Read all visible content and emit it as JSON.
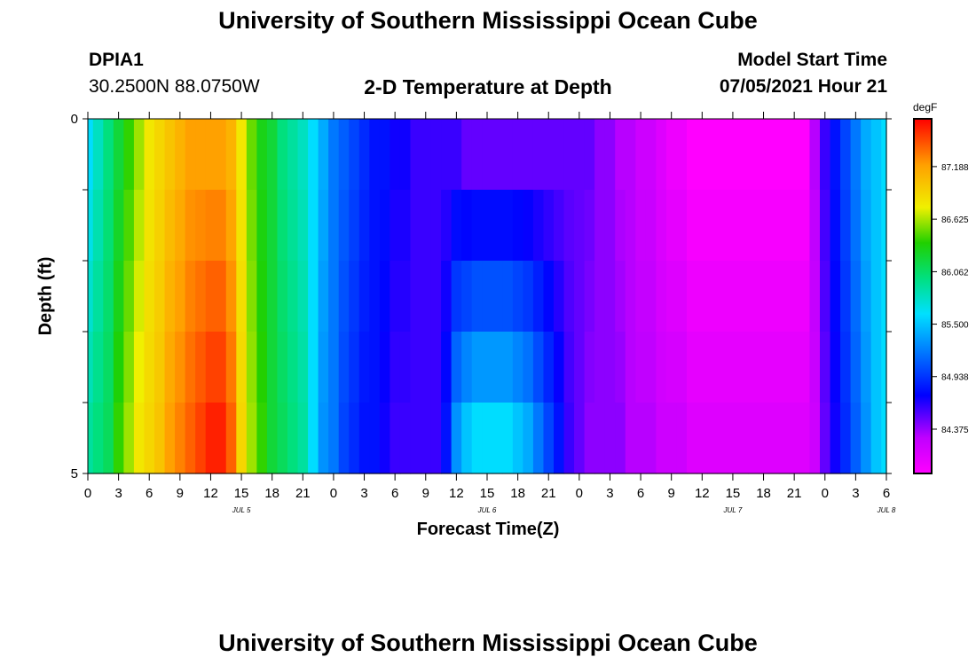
{
  "header": {
    "title": "University of Southern Mississippi Ocean Cube",
    "station": "DPIA1",
    "coords": "30.2500N  88.0750W",
    "plot_title": "2-D Temperature at Depth",
    "model_start_label": "Model Start Time",
    "model_start_value": "07/05/2021 Hour 21"
  },
  "footer": {
    "title": "University of Southern Mississippi Ocean Cube"
  },
  "chart_data": {
    "type": "heatmap",
    "title": "2-D Temperature at Depth",
    "xlabel": "Forecast Time(Z)",
    "ylabel": "Depth (ft)",
    "colorbar_label": "degF",
    "x_tick_labels": [
      "0",
      "3",
      "6",
      "9",
      "12",
      "15",
      "18",
      "21",
      "0",
      "3",
      "6",
      "9",
      "12",
      "15",
      "18",
      "21",
      "0",
      "3",
      "6",
      "9",
      "12",
      "15",
      "18",
      "21",
      "0",
      "3",
      "6"
    ],
    "date_labels": [
      "JUL 5",
      "JUL 6",
      "JUL 7",
      "JUL 8"
    ],
    "date_label_hours": [
      15,
      39,
      63,
      78
    ],
    "y_tick_labels": [
      "0",
      "5"
    ],
    "ylim": [
      0,
      5
    ],
    "xlim_hours": [
      0,
      78
    ],
    "colorbar_ticks": [
      "87.188",
      "86.625",
      "86.062",
      "85.500",
      "84.938",
      "84.375"
    ],
    "colorbar_range_degF": [
      83.9,
      87.7
    ],
    "time_hours": [
      0,
      1,
      2,
      3,
      4,
      5,
      6,
      7,
      8,
      9,
      10,
      11,
      12,
      13,
      14,
      15,
      16,
      17,
      18,
      19,
      20,
      21,
      22,
      23,
      24,
      25,
      26,
      27,
      28,
      29,
      30,
      31,
      32,
      33,
      34,
      35,
      36,
      37,
      38,
      39,
      40,
      41,
      42,
      43,
      44,
      45,
      46,
      47,
      48,
      49,
      50,
      51,
      52,
      53,
      54,
      55,
      56,
      57,
      58,
      59,
      60,
      61,
      62,
      63,
      64,
      65,
      66,
      67,
      68,
      69,
      70,
      71,
      72,
      73,
      74,
      75,
      76,
      77,
      78
    ],
    "temperature_surface_degF": [
      85.6,
      85.8,
      86.0,
      86.2,
      86.4,
      86.6,
      86.8,
      86.9,
      87.0,
      87.1,
      87.2,
      87.2,
      87.2,
      87.2,
      87.1,
      86.8,
      86.5,
      86.3,
      86.2,
      86.0,
      85.9,
      85.8,
      85.6,
      85.4,
      85.2,
      85.1,
      85.0,
      84.9,
      84.8,
      84.8,
      84.7,
      84.7,
      84.6,
      84.6,
      84.6,
      84.6,
      84.6,
      84.5,
      84.5,
      84.5,
      84.5,
      84.5,
      84.5,
      84.5,
      84.5,
      84.5,
      84.5,
      84.5,
      84.5,
      84.5,
      84.4,
      84.4,
      84.3,
      84.3,
      84.2,
      84.2,
      84.1,
      84.0,
      84.0,
      83.9,
      83.9,
      83.9,
      83.9,
      83.9,
      83.9,
      83.9,
      83.9,
      83.9,
      83.9,
      83.9,
      83.9,
      84.3,
      84.6,
      84.8,
      85.0,
      85.2,
      85.4,
      85.5,
      85.6
    ],
    "temperature_bottom_degF": [
      85.9,
      86.0,
      86.1,
      86.4,
      86.6,
      86.8,
      86.9,
      87.0,
      87.2,
      87.3,
      87.4,
      87.5,
      87.6,
      87.6,
      87.4,
      86.9,
      86.6,
      86.4,
      86.2,
      86.1,
      86.0,
      85.9,
      85.6,
      85.3,
      85.2,
      85.0,
      84.9,
      84.8,
      84.8,
      84.7,
      84.6,
      84.6,
      84.6,
      84.6,
      84.6,
      84.8,
      85.3,
      85.5,
      85.6,
      85.6,
      85.6,
      85.6,
      85.5,
      85.4,
      85.2,
      85.0,
      84.8,
      84.6,
      84.5,
      84.4,
      84.4,
      84.4,
      84.4,
      84.3,
      84.3,
      84.3,
      84.2,
      84.2,
      84.2,
      84.1,
      84.1,
      84.1,
      84.1,
      84.1,
      84.1,
      84.1,
      84.1,
      84.1,
      84.1,
      84.1,
      84.1,
      84.2,
      84.5,
      84.7,
      84.9,
      85.1,
      85.3,
      85.5,
      85.6
    ]
  }
}
